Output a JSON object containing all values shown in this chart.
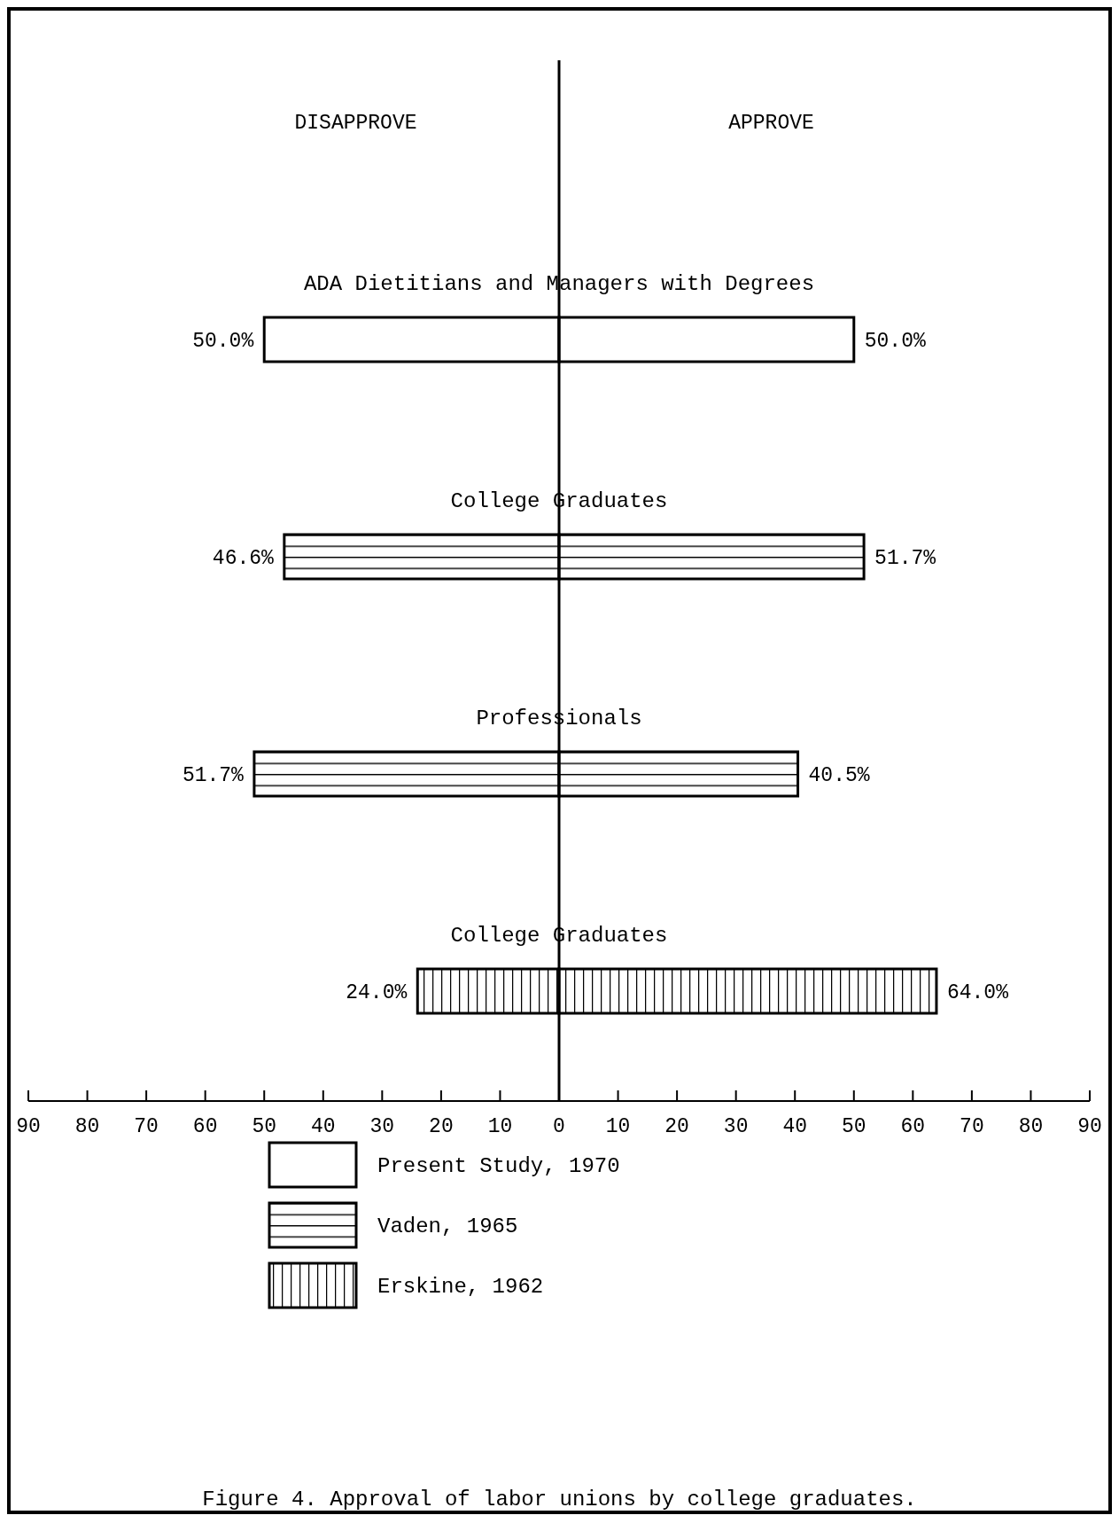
{
  "chart_data": [
    {
      "type": "bar",
      "orientation": "horizontal",
      "title": "DISAPPROVE",
      "annotations": [
        "Figure 4.  Approval of labor unions by college graduates."
      ],
      "categories": [
        "ADA Dietitians and Managers with Degrees",
        "College Graduates",
        "Professionals",
        "College Graduates"
      ],
      "series": [
        {
          "name": "Present Study, 1970",
          "color": "#000000",
          "values": [
            50,
            null,
            null,
            null
          ],
          "value_labels": [
            "50.0%",
            null,
            null,
            null
          ]
        },
        {
          "name": "Vaden, 1965",
          "color": "#000000",
          "values": [
            null,
            46.6,
            51.7,
            null
          ],
          "value_labels": [
            null,
            "46.6%",
            "51.7%",
            null
          ]
        },
        {
          "name": "Erskine, 1962",
          "color": "#000000",
          "values": [
            null,
            null,
            null,
            24
          ],
          "value_labels": [
            null,
            null,
            null,
            "24.0%"
          ]
        }
      ],
      "xlim": [
        90,
        0
      ],
      "xticks": [
        90,
        80,
        70,
        60,
        50,
        40,
        30,
        20,
        10
      ],
      "legend": "bottom"
    },
    {
      "type": "bar",
      "orientation": "horizontal",
      "title": "APPROVE",
      "categories": [
        null,
        null,
        null,
        null
      ],
      "series": [
        {
          "color": "#000000",
          "values": [
            50,
            null,
            null,
            null
          ],
          "value_labels": [
            "50.0%",
            null,
            null,
            null
          ]
        },
        {
          "color": "#000000",
          "values": [
            null,
            51.7,
            40.5,
            null
          ],
          "value_labels": [
            null,
            "51.7%",
            "40.5%",
            null
          ]
        },
        {
          "color": "#000000",
          "values": [
            null,
            null,
            null,
            64
          ],
          "value_labels": [
            null,
            null,
            null,
            "64.0%"
          ]
        }
      ],
      "xlim": [
        0,
        90
      ],
      "xticks": [
        0,
        10,
        20,
        30,
        40,
        50,
        60,
        70,
        80,
        90
      ]
    }
  ]
}
